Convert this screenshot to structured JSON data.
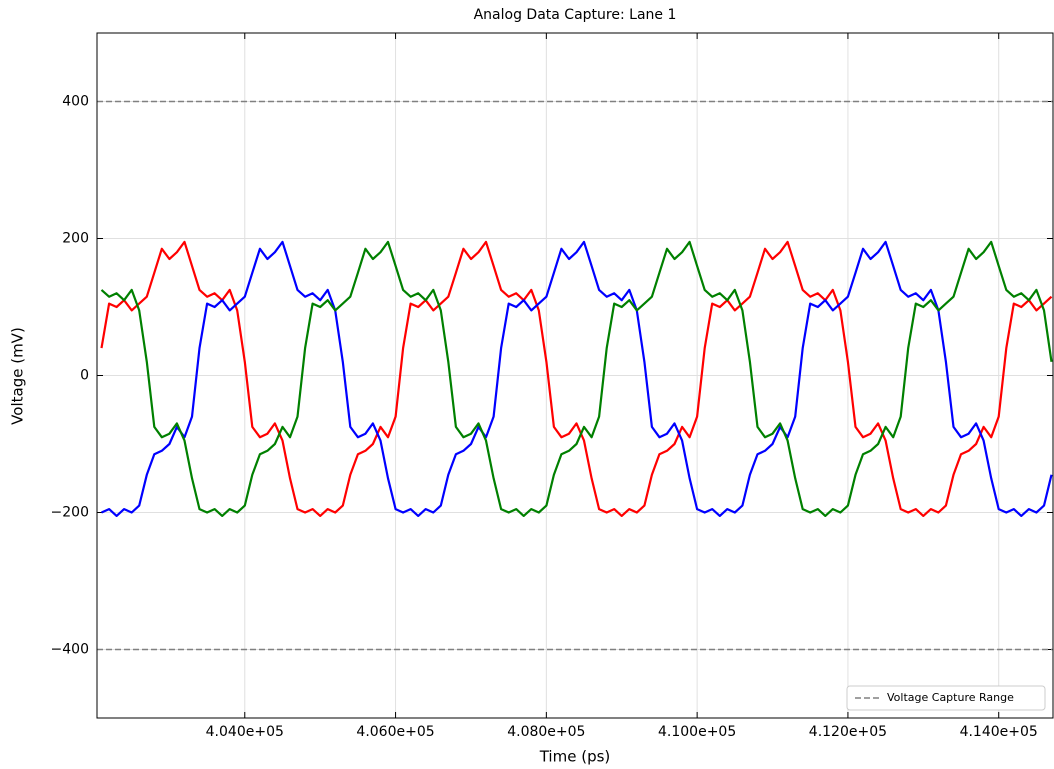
{
  "chart_data": {
    "type": "line",
    "title": "Analog Data Capture: Lane 1",
    "xlabel": "Time (ps)",
    "ylabel": "Voltage (mV)",
    "xlim": [
      402040,
      414720
    ],
    "ylim": [
      -500,
      500
    ],
    "xticks": [
      {
        "value": 404000,
        "label": "4.040e+05"
      },
      {
        "value": 406000,
        "label": "4.060e+05"
      },
      {
        "value": 408000,
        "label": "4.080e+05"
      },
      {
        "value": 410000,
        "label": "4.100e+05"
      },
      {
        "value": 412000,
        "label": "4.120e+05"
      },
      {
        "value": 414000,
        "label": "4.140e+05"
      }
    ],
    "yticks": [
      {
        "value": -400,
        "label": "−400"
      },
      {
        "value": -200,
        "label": "−200"
      },
      0,
      200,
      400
    ],
    "grid": true,
    "legend_position": "lower right",
    "reference_lines": {
      "name": "Voltage Capture Range",
      "values": [
        400,
        -400
      ],
      "color": "#808080"
    },
    "x": [
      402100,
      402200,
      402300,
      402400,
      402500,
      402600,
      402700,
      402800,
      402900,
      403000,
      403100,
      403200,
      403300,
      403400,
      403500,
      403600,
      403700,
      403800,
      403900,
      404000,
      404100,
      404200,
      404300,
      404400,
      404500,
      404600,
      404700,
      404800,
      404900,
      405000,
      405100,
      405200,
      405300,
      405400,
      405500,
      405600,
      405700,
      405800,
      405900,
      406000,
      406100,
      406200,
      406300,
      406400,
      406500,
      406600,
      406700,
      406800,
      406900,
      407000,
      407100,
      407200,
      407300,
      407400,
      407500,
      407600,
      407700,
      407800,
      407900,
      408000,
      408100,
      408200,
      408300,
      408400,
      408500,
      408600,
      408700,
      408800,
      408900,
      409000,
      409100,
      409200,
      409300,
      409400,
      409500,
      409600,
      409700,
      409800,
      409900,
      410000,
      410100,
      410200,
      410300,
      410400,
      410500,
      410600,
      410700,
      410800,
      410900,
      411000,
      411100,
      411200,
      411300,
      411400,
      411500,
      411600,
      411700,
      411800,
      411900,
      412000,
      412100,
      412200,
      412300,
      412400,
      412500,
      412600,
      412700,
      412800,
      412900,
      413000,
      413100,
      413200,
      413300,
      413400,
      413500,
      413600,
      413700,
      413800,
      413900,
      414000,
      414100,
      414200,
      414300,
      414400,
      414500,
      414600,
      414700
    ],
    "series": [
      {
        "color": "#ff0000",
        "values": [
          40,
          105,
          100,
          110,
          95,
          105,
          115,
          150,
          185,
          170,
          180,
          195,
          160,
          125,
          115,
          120,
          110,
          125,
          95,
          20,
          -75,
          -90,
          -85,
          -70,
          -95,
          -150,
          -195,
          -200,
          -195,
          -205,
          -195,
          -200,
          -190,
          -145,
          -115,
          -110,
          -100,
          -75,
          -90,
          -60,
          40,
          105,
          100,
          110,
          95,
          105,
          115,
          150,
          185,
          170,
          180,
          195,
          160,
          125,
          115,
          120,
          110,
          125,
          95,
          20,
          -75,
          -90,
          -85,
          -70,
          -95,
          -150,
          -195,
          -200,
          -195,
          -205,
          -195,
          -200,
          -190,
          -145,
          -115,
          -110,
          -100,
          -75,
          -90,
          -60,
          40,
          105,
          100,
          110,
          95,
          105,
          115,
          150,
          185,
          170,
          180,
          195,
          160,
          125,
          115,
          120,
          110,
          125,
          95,
          20,
          -75,
          -90,
          -85,
          -70,
          -95,
          -150,
          -195,
          -200,
          -195,
          -205,
          -195,
          -200,
          -190,
          -145,
          -115,
          -110,
          -100,
          -75,
          -90,
          -60,
          40,
          105,
          100,
          110,
          95,
          105,
          115
        ]
      },
      {
        "color": "#0000ff",
        "values": [
          -200,
          -195,
          -205,
          -195,
          -200,
          -190,
          -145,
          -115,
          -110,
          -100,
          -75,
          -90,
          -60,
          40,
          105,
          100,
          110,
          95,
          105,
          115,
          150,
          185,
          170,
          180,
          195,
          160,
          125,
          115,
          120,
          110,
          125,
          95,
          20,
          -75,
          -90,
          -85,
          -70,
          -95,
          -150,
          -195,
          -200,
          -195,
          -205,
          -195,
          -200,
          -190,
          -145,
          -115,
          -110,
          -100,
          -75,
          -90,
          -60,
          40,
          105,
          100,
          110,
          95,
          105,
          115,
          150,
          185,
          170,
          180,
          195,
          160,
          125,
          115,
          120,
          110,
          125,
          95,
          20,
          -75,
          -90,
          -85,
          -70,
          -95,
          -150,
          -195,
          -200,
          -195,
          -205,
          -195,
          -200,
          -190,
          -145,
          -115,
          -110,
          -100,
          -75,
          -90,
          -60,
          40,
          105,
          100,
          110,
          95,
          105,
          115,
          150,
          185,
          170,
          180,
          195,
          160,
          125,
          115,
          120,
          110,
          125,
          95,
          20,
          -75,
          -90,
          -85,
          -70,
          -95,
          -150,
          -195,
          -200,
          -195,
          -205,
          -195,
          -200,
          -190,
          -145
        ]
      },
      {
        "color": "#008000",
        "values": [
          125,
          115,
          120,
          110,
          125,
          95,
          20,
          -75,
          -90,
          -85,
          -70,
          -95,
          -150,
          -195,
          -200,
          -195,
          -205,
          -195,
          -200,
          -190,
          -145,
          -115,
          -110,
          -100,
          -75,
          -90,
          -60,
          40,
          105,
          100,
          110,
          95,
          105,
          115,
          150,
          185,
          170,
          180,
          195,
          160,
          125,
          115,
          120,
          110,
          125,
          95,
          20,
          -75,
          -90,
          -85,
          -70,
          -95,
          -150,
          -195,
          -200,
          -195,
          -205,
          -195,
          -200,
          -190,
          -145,
          -115,
          -110,
          -100,
          -75,
          -90,
          -60,
          40,
          105,
          100,
          110,
          95,
          105,
          115,
          150,
          185,
          170,
          180,
          195,
          160,
          125,
          115,
          120,
          110,
          125,
          95,
          20,
          -75,
          -90,
          -85,
          -70,
          -95,
          -150,
          -195,
          -200,
          -195,
          -205,
          -195,
          -200,
          -190,
          -145,
          -115,
          -110,
          -100,
          -75,
          -90,
          -60,
          40,
          105,
          100,
          110,
          95,
          105,
          115,
          150,
          185,
          170,
          180,
          195,
          160,
          125,
          115,
          120,
          110,
          125,
          95,
          20
        ]
      }
    ]
  }
}
